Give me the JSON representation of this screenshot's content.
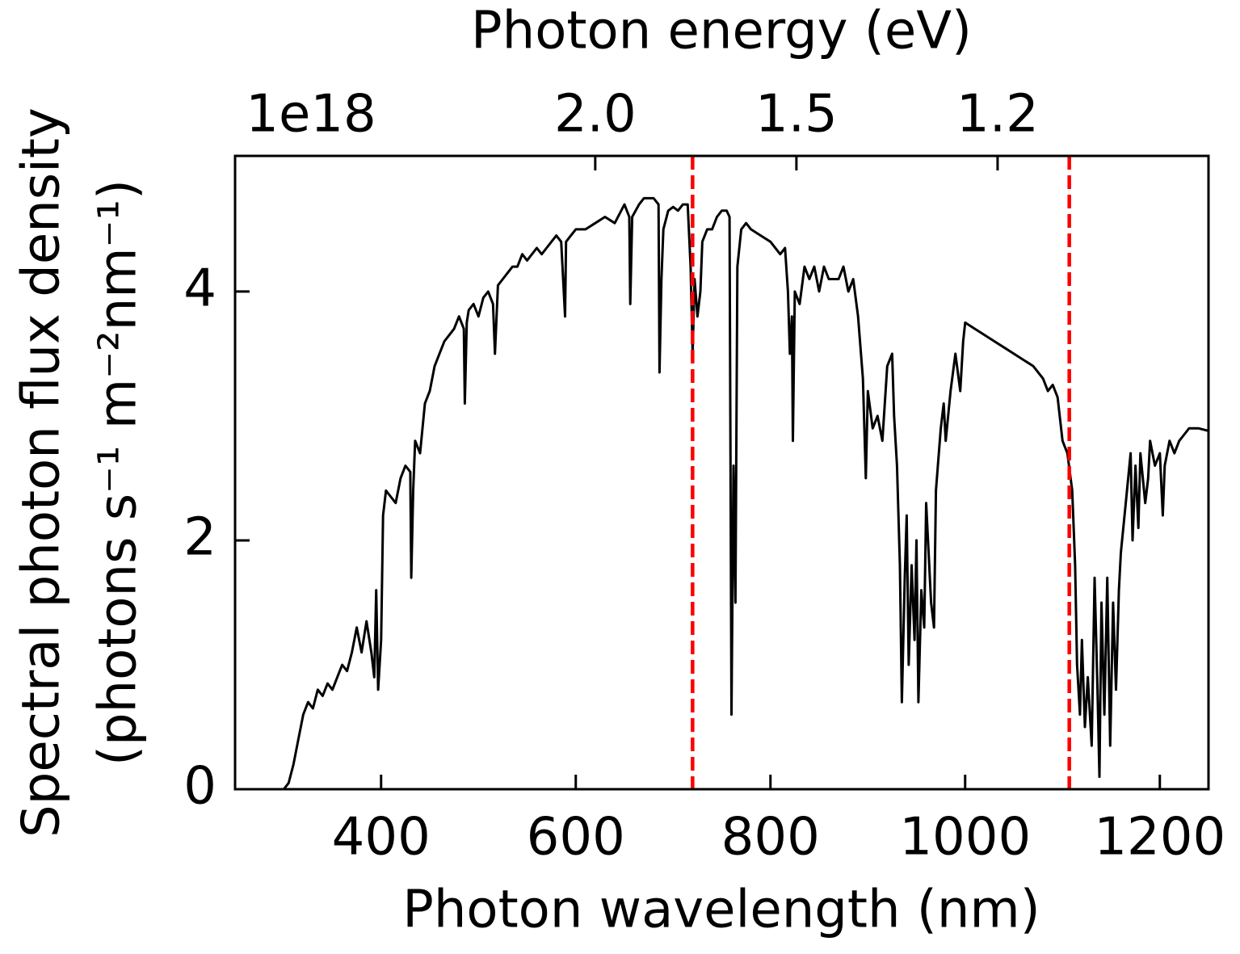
{
  "chart_data": {
    "type": "line",
    "xlabel": "Photon wavelength (nm)",
    "ylabel": [
      "Spectral photon flux density",
      "(photons s⁻¹ m⁻²nm⁻¹)"
    ],
    "x2label": "Photon energy (eV)",
    "offset_label": "1e18",
    "xlim": [
      250,
      1250
    ],
    "xticks": [
      400,
      600,
      800,
      1000,
      1200
    ],
    "ylim": [
      0,
      5.09
    ],
    "yticks": [
      0,
      2,
      4
    ],
    "x2ticks": [
      {
        "value": 2.0,
        "label": "2.0"
      },
      1.5,
      1.2
    ],
    "tick_direction": "in",
    "grid": false,
    "vlines": [
      {
        "x": 720,
        "color": "#ff0000",
        "style": "dashed"
      },
      {
        "x": 1107,
        "color": "#ff0000",
        "style": "dashed"
      }
    ],
    "x": [
      300,
      305,
      310,
      315,
      320,
      325,
      330,
      335,
      340,
      345,
      350,
      355,
      360,
      365,
      370,
      375,
      380,
      385,
      390,
      393,
      395,
      397,
      400,
      402,
      405,
      410,
      415,
      420,
      425,
      430,
      431,
      433,
      435,
      440,
      445,
      450,
      455,
      460,
      465,
      470,
      475,
      480,
      485,
      486,
      488,
      490,
      495,
      500,
      505,
      510,
      515,
      517,
      520,
      525,
      530,
      535,
      540,
      545,
      550,
      555,
      560,
      565,
      570,
      575,
      580,
      585,
      589,
      590,
      595,
      600,
      610,
      620,
      630,
      640,
      650,
      655,
      656,
      658,
      665,
      670,
      675,
      680,
      685,
      686,
      688,
      690,
      695,
      700,
      705,
      710,
      715,
      718,
      720,
      722,
      725,
      728,
      730,
      735,
      740,
      745,
      750,
      755,
      758,
      760,
      762,
      764,
      766,
      770,
      775,
      780,
      790,
      800,
      810,
      815,
      818,
      820,
      822,
      823,
      825,
      830,
      835,
      840,
      845,
      850,
      855,
      860,
      870,
      875,
      880,
      885,
      890,
      895,
      898,
      900,
      905,
      910,
      915,
      920,
      925,
      927,
      930,
      933,
      935,
      938,
      940,
      942,
      945,
      948,
      950,
      952,
      955,
      958,
      960,
      965,
      968,
      970,
      975,
      978,
      980,
      985,
      990,
      995,
      998,
      1000,
      1010,
      1020,
      1030,
      1040,
      1050,
      1060,
      1070,
      1080,
      1085,
      1090,
      1095,
      1100,
      1105,
      1110,
      1113,
      1115,
      1118,
      1120,
      1123,
      1126,
      1130,
      1133,
      1136,
      1138,
      1140,
      1143,
      1146,
      1149,
      1152,
      1155,
      1158,
      1160,
      1165,
      1170,
      1172,
      1175,
      1178,
      1180,
      1185,
      1188,
      1190,
      1195,
      1200,
      1203,
      1205,
      1210,
      1215,
      1220,
      1225,
      1230,
      1240,
      1250
    ],
    "series": [
      {
        "color": "#000000",
        "values": [
          0,
          0.05,
          0.2,
          0.4,
          0.6,
          0.7,
          0.65,
          0.8,
          0.75,
          0.85,
          0.8,
          0.9,
          1.0,
          0.95,
          1.1,
          1.3,
          1.1,
          1.35,
          1.1,
          0.9,
          1.6,
          0.8,
          1.2,
          2.2,
          2.4,
          2.35,
          2.3,
          2.5,
          2.6,
          2.55,
          1.7,
          2.4,
          2.8,
          2.7,
          3.1,
          3.2,
          3.4,
          3.5,
          3.6,
          3.65,
          3.7,
          3.8,
          3.7,
          3.1,
          3.75,
          3.85,
          3.9,
          3.8,
          3.95,
          4.0,
          3.9,
          3.5,
          4.05,
          4.1,
          4.15,
          4.2,
          4.2,
          4.3,
          4.25,
          4.3,
          4.35,
          4.3,
          4.35,
          4.4,
          4.45,
          4.4,
          3.8,
          4.4,
          4.45,
          4.5,
          4.5,
          4.55,
          4.6,
          4.55,
          4.7,
          4.6,
          3.9,
          4.6,
          4.7,
          4.75,
          4.75,
          4.75,
          4.7,
          3.35,
          4.1,
          4.5,
          4.65,
          4.68,
          4.65,
          4.7,
          4.7,
          4.2,
          3.5,
          4.1,
          3.8,
          4.0,
          4.4,
          4.5,
          4.5,
          4.6,
          4.65,
          4.65,
          4.6,
          0.6,
          2.6,
          1.5,
          4.2,
          4.5,
          4.55,
          4.5,
          4.45,
          4.4,
          4.3,
          4.35,
          4.0,
          3.5,
          3.8,
          2.8,
          4.0,
          3.9,
          4.2,
          4.1,
          4.2,
          4.0,
          4.2,
          4.1,
          4.1,
          4.2,
          4.0,
          4.1,
          3.8,
          3.3,
          2.5,
          3.2,
          2.9,
          3.0,
          2.8,
          3.4,
          3.5,
          3.0,
          2.6,
          1.8,
          0.7,
          1.7,
          2.2,
          1.0,
          1.8,
          1.2,
          2.0,
          0.7,
          1.6,
          1.3,
          2.3,
          1.5,
          1.3,
          2.4,
          2.9,
          3.1,
          2.8,
          3.2,
          3.5,
          3.2,
          3.6,
          3.75,
          3.7,
          3.65,
          3.6,
          3.55,
          3.5,
          3.45,
          3.4,
          3.3,
          3.2,
          3.25,
          3.15,
          2.8,
          2.7,
          2.4,
          1.8,
          1.0,
          0.6,
          1.2,
          0.5,
          0.9,
          0.35,
          1.7,
          0.8,
          0.1,
          1.5,
          0.6,
          1.7,
          0.35,
          1.5,
          0.8,
          1.6,
          1.9,
          2.3,
          2.7,
          2.0,
          2.6,
          2.1,
          2.7,
          2.3,
          2.5,
          2.8,
          2.6,
          2.7,
          2.2,
          2.6,
          2.8,
          2.7,
          2.8,
          2.85,
          2.9,
          2.9,
          2.88
        ]
      }
    ]
  }
}
